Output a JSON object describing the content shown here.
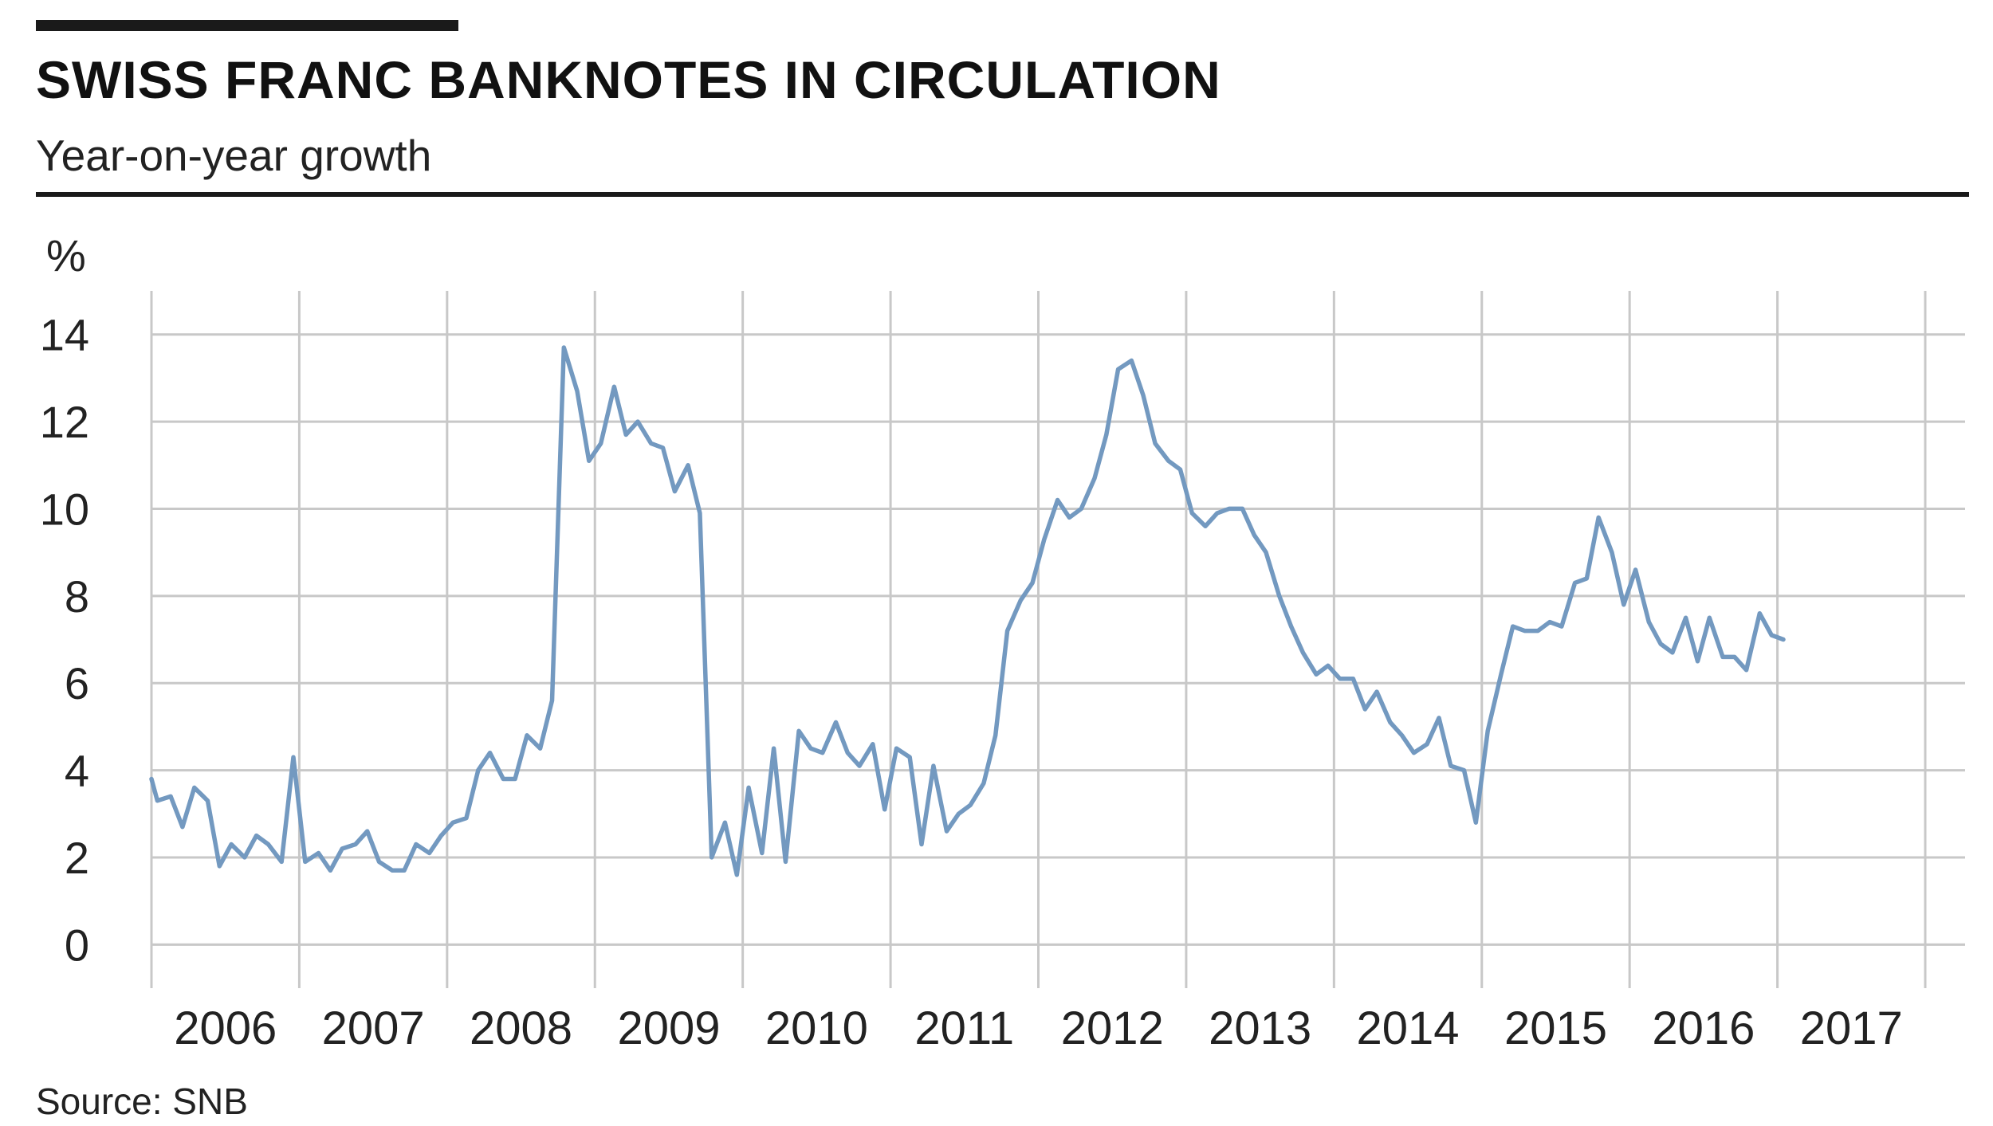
{
  "header": {
    "title": "SWISS FRANC BANKNOTES IN CIRCULATION",
    "subtitle": "Year-on-year growth",
    "unit": "%"
  },
  "footer": {
    "source": "Source: SNB"
  },
  "colors": {
    "line": "#7399c0",
    "grid": "#c8c8c8",
    "text": "#222222"
  },
  "chart_data": {
    "type": "line",
    "title": "SWISS FRANC BANKNOTES IN CIRCULATION",
    "subtitle": "Year-on-year growth",
    "ylabel": "%",
    "xlabel": "",
    "ylim": [
      -1,
      15
    ],
    "xlim": [
      2006,
      2018
    ],
    "yticks": [
      0,
      2,
      4,
      6,
      8,
      10,
      12,
      14
    ],
    "xticks": [
      "2006",
      "2007",
      "2008",
      "2009",
      "2010",
      "2011",
      "2012",
      "2013",
      "2014",
      "2015",
      "2016",
      "2017"
    ],
    "grid": true,
    "legend": "none",
    "series": [
      {
        "values": [
          [
            2006.0,
            3.8
          ],
          [
            2006.04,
            3.3
          ],
          [
            2006.13,
            3.4
          ],
          [
            2006.21,
            2.7
          ],
          [
            2006.29,
            3.6
          ],
          [
            2006.38,
            3.3
          ],
          [
            2006.46,
            1.8
          ],
          [
            2006.54,
            2.3
          ],
          [
            2006.63,
            2.0
          ],
          [
            2006.71,
            2.5
          ],
          [
            2006.79,
            2.3
          ],
          [
            2006.88,
            1.9
          ],
          [
            2006.96,
            4.3
          ],
          [
            2007.04,
            1.9
          ],
          [
            2007.13,
            2.1
          ],
          [
            2007.21,
            1.7
          ],
          [
            2007.29,
            2.2
          ],
          [
            2007.38,
            2.3
          ],
          [
            2007.46,
            2.6
          ],
          [
            2007.54,
            1.9
          ],
          [
            2007.63,
            1.7
          ],
          [
            2007.71,
            1.7
          ],
          [
            2007.79,
            2.3
          ],
          [
            2007.88,
            2.1
          ],
          [
            2007.96,
            2.5
          ],
          [
            2008.04,
            2.8
          ],
          [
            2008.13,
            2.9
          ],
          [
            2008.21,
            4.0
          ],
          [
            2008.29,
            4.4
          ],
          [
            2008.38,
            3.8
          ],
          [
            2008.46,
            3.8
          ],
          [
            2008.54,
            4.8
          ],
          [
            2008.63,
            4.5
          ],
          [
            2008.71,
            5.6
          ],
          [
            2008.79,
            13.7
          ],
          [
            2008.88,
            12.7
          ],
          [
            2008.96,
            11.1
          ],
          [
            2009.04,
            11.5
          ],
          [
            2009.13,
            12.8
          ],
          [
            2009.21,
            11.7
          ],
          [
            2009.29,
            12.0
          ],
          [
            2009.38,
            11.5
          ],
          [
            2009.46,
            11.4
          ],
          [
            2009.54,
            10.4
          ],
          [
            2009.63,
            11.0
          ],
          [
            2009.71,
            9.9
          ],
          [
            2009.79,
            2.0
          ],
          [
            2009.88,
            2.8
          ],
          [
            2009.96,
            1.6
          ],
          [
            2010.04,
            3.6
          ],
          [
            2010.13,
            2.1
          ],
          [
            2010.21,
            4.5
          ],
          [
            2010.29,
            1.9
          ],
          [
            2010.38,
            4.9
          ],
          [
            2010.46,
            4.5
          ],
          [
            2010.54,
            4.4
          ],
          [
            2010.63,
            5.1
          ],
          [
            2010.71,
            4.4
          ],
          [
            2010.79,
            4.1
          ],
          [
            2010.88,
            4.6
          ],
          [
            2010.96,
            3.1
          ],
          [
            2011.04,
            4.5
          ],
          [
            2011.13,
            4.3
          ],
          [
            2011.21,
            2.3
          ],
          [
            2011.29,
            4.1
          ],
          [
            2011.38,
            2.6
          ],
          [
            2011.46,
            3.0
          ],
          [
            2011.54,
            3.2
          ],
          [
            2011.63,
            3.7
          ],
          [
            2011.71,
            4.8
          ],
          [
            2011.79,
            7.2
          ],
          [
            2011.88,
            7.9
          ],
          [
            2011.96,
            8.3
          ],
          [
            2012.04,
            9.3
          ],
          [
            2012.13,
            10.2
          ],
          [
            2012.21,
            9.8
          ],
          [
            2012.29,
            10.0
          ],
          [
            2012.38,
            10.7
          ],
          [
            2012.46,
            11.7
          ],
          [
            2012.54,
            13.2
          ],
          [
            2012.63,
            13.4
          ],
          [
            2012.71,
            12.6
          ],
          [
            2012.79,
            11.5
          ],
          [
            2012.88,
            11.1
          ],
          [
            2012.96,
            10.9
          ],
          [
            2013.04,
            9.9
          ],
          [
            2013.13,
            9.6
          ],
          [
            2013.21,
            9.9
          ],
          [
            2013.29,
            10.0
          ],
          [
            2013.38,
            10.0
          ],
          [
            2013.46,
            9.4
          ],
          [
            2013.54,
            9.0
          ],
          [
            2013.63,
            8.0
          ],
          [
            2013.71,
            7.3
          ],
          [
            2013.79,
            6.7
          ],
          [
            2013.88,
            6.2
          ],
          [
            2013.96,
            6.4
          ],
          [
            2014.04,
            6.1
          ],
          [
            2014.13,
            6.1
          ],
          [
            2014.21,
            5.4
          ],
          [
            2014.29,
            5.8
          ],
          [
            2014.38,
            5.1
          ],
          [
            2014.46,
            4.8
          ],
          [
            2014.54,
            4.4
          ],
          [
            2014.63,
            4.6
          ],
          [
            2014.71,
            5.2
          ],
          [
            2014.79,
            4.1
          ],
          [
            2014.88,
            4.0
          ],
          [
            2014.96,
            2.8
          ],
          [
            2015.04,
            4.9
          ],
          [
            2015.13,
            6.2
          ],
          [
            2015.21,
            7.3
          ],
          [
            2015.29,
            7.2
          ],
          [
            2015.38,
            7.2
          ],
          [
            2015.46,
            7.4
          ],
          [
            2015.54,
            7.3
          ],
          [
            2015.63,
            8.3
          ],
          [
            2015.71,
            8.4
          ],
          [
            2015.79,
            9.8
          ],
          [
            2015.88,
            9.0
          ],
          [
            2015.96,
            7.8
          ],
          [
            2016.04,
            8.6
          ],
          [
            2016.13,
            7.4
          ],
          [
            2016.21,
            6.9
          ],
          [
            2016.29,
            6.7
          ],
          [
            2016.38,
            7.5
          ],
          [
            2016.46,
            6.5
          ],
          [
            2016.54,
            7.5
          ],
          [
            2016.63,
            6.6
          ],
          [
            2016.71,
            6.6
          ],
          [
            2016.79,
            6.3
          ],
          [
            2016.88,
            7.6
          ],
          [
            2016.96,
            7.1
          ],
          [
            2017.04,
            7.0
          ]
        ]
      }
    ]
  }
}
